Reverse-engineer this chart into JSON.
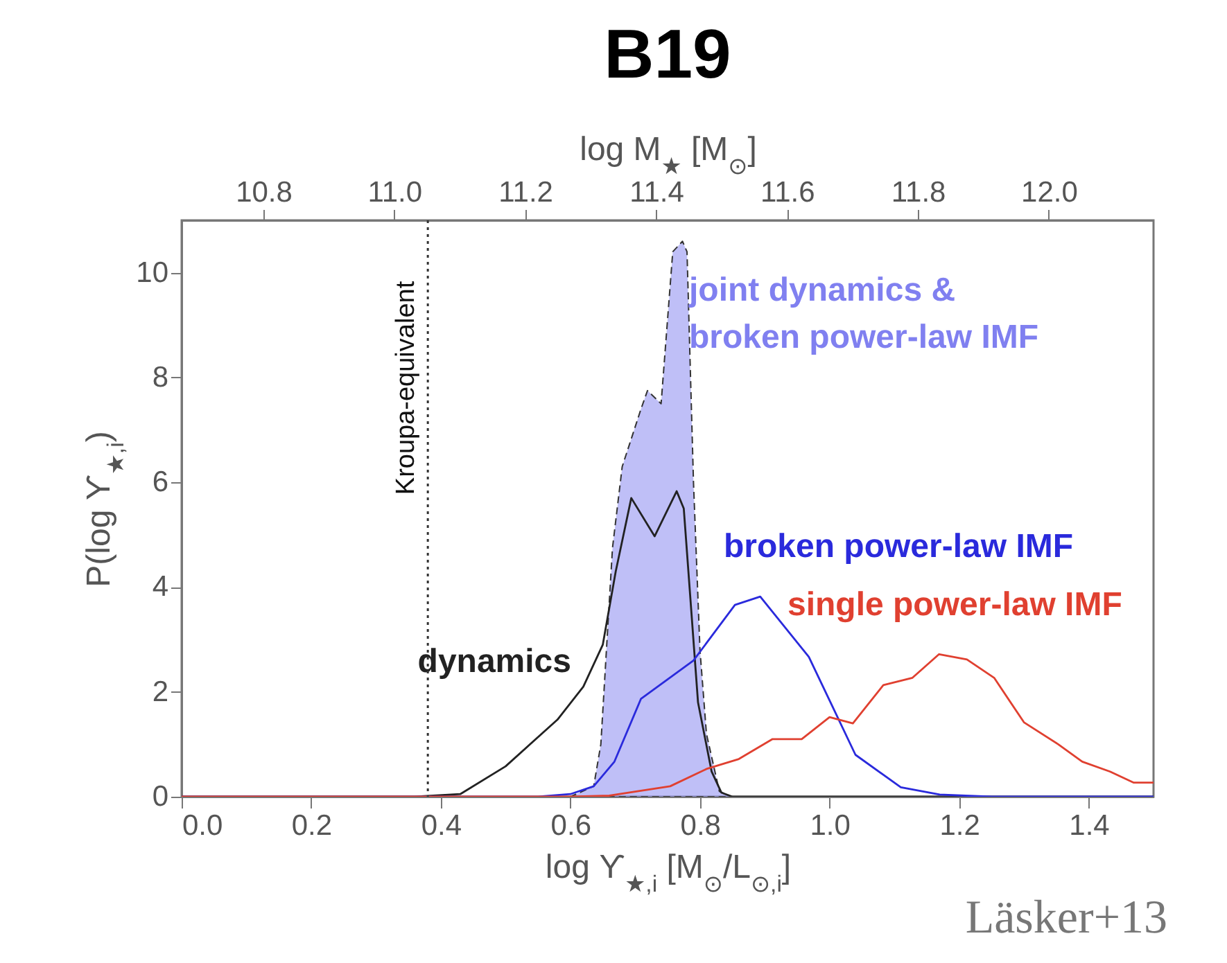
{
  "chart_data": {
    "type": "line",
    "title": "B19",
    "xlabel": "log ϒ$_{★,i}$ [M$_{⊙}$/L$_{⊙,i}$]",
    "ylabel": "P(log ϒ$_{★,i}$)",
    "x2label": "log M$_{★}$ [M$_{⊙}$]",
    "xlim": [
      0,
      1.5
    ],
    "xticks": [
      {
        "value": 0,
        "label": "0.0"
      },
      0.2,
      0.4,
      0.6,
      0.8,
      {
        "value": 1,
        "label": "1.0"
      },
      1.2,
      1.4
    ],
    "ylim": [
      0,
      11
    ],
    "yticks": [
      0,
      2,
      4,
      6,
      8,
      10
    ],
    "x2lim": [
      10.675,
      12.16
    ],
    "x2ticks": [
      10.8,
      {
        "value": 11,
        "label": "11.0"
      },
      11.2,
      11.4,
      11.6,
      11.8,
      {
        "value": 12,
        "label": "12.0"
      }
    ],
    "grid": false,
    "series": [
      {
        "name": "dynamics",
        "color": "#222222",
        "line_style": "solid",
        "x": [
          0,
          0.36,
          0.43,
          0.5,
          0.58,
          0.62,
          0.65,
          0.67,
          0.694,
          0.73,
          0.764,
          0.775,
          0.797,
          0.818,
          0.833,
          0.85,
          1.5
        ],
        "values": [
          0,
          0,
          0.05,
          0.58,
          1.47,
          2.1,
          2.9,
          4.3,
          5.7,
          4.97,
          5.83,
          5.5,
          1.8,
          0.48,
          0.08,
          0,
          0
        ]
      },
      {
        "name": "joint dynamics & broken power-law IMF",
        "type": "area",
        "color": "#8080f0",
        "line_style": "dashed",
        "x": [
          0,
          0.6,
          0.636,
          0.647,
          0.665,
          0.68,
          0.709,
          0.719,
          0.74,
          0.758,
          0.773,
          0.78,
          0.79,
          0.8,
          0.81,
          0.83,
          0.85,
          1.5
        ],
        "values": [
          0,
          0,
          0.2,
          1.0,
          4.75,
          6.3,
          7.4,
          7.75,
          7.5,
          10.4,
          10.6,
          10.4,
          6.0,
          2.8,
          1.2,
          0.1,
          0,
          0
        ]
      },
      {
        "name": "broken power-law IMF",
        "color": "#2a2adc",
        "line_style": "solid",
        "x": [
          0,
          0.55,
          0.6,
          0.636,
          0.668,
          0.709,
          0.79,
          0.854,
          0.893,
          0.968,
          1.04,
          1.11,
          1.17,
          1.25,
          1.5
        ],
        "values": [
          0,
          0,
          0.05,
          0.2,
          0.67,
          1.87,
          2.6,
          3.66,
          3.82,
          2.67,
          0.8,
          0.18,
          0.04,
          0,
          0
        ]
      },
      {
        "name": "single power-law IMF",
        "color": "#e04030",
        "line_style": "solid",
        "x": [
          0,
          0.6,
          0.66,
          0.754,
          0.81,
          0.86,
          0.912,
          0.957,
          1.0,
          1.036,
          1.083,
          1.128,
          1.169,
          1.212,
          1.254,
          1.3,
          1.353,
          1.39,
          1.433,
          1.469,
          1.5
        ],
        "values": [
          0,
          0,
          0.02,
          0.2,
          0.53,
          0.72,
          1.1,
          1.1,
          1.52,
          1.4,
          2.13,
          2.27,
          2.72,
          2.62,
          2.27,
          1.42,
          1.0,
          0.67,
          0.48,
          0.27,
          0.27
        ]
      }
    ],
    "ref_lines": [
      {
        "axis": "x",
        "value": 0.38,
        "label": "Kroupa-equivalent",
        "color": "#333333",
        "line_style": "dotted"
      }
    ],
    "annotations": [
      "Läsker+13"
    ]
  }
}
